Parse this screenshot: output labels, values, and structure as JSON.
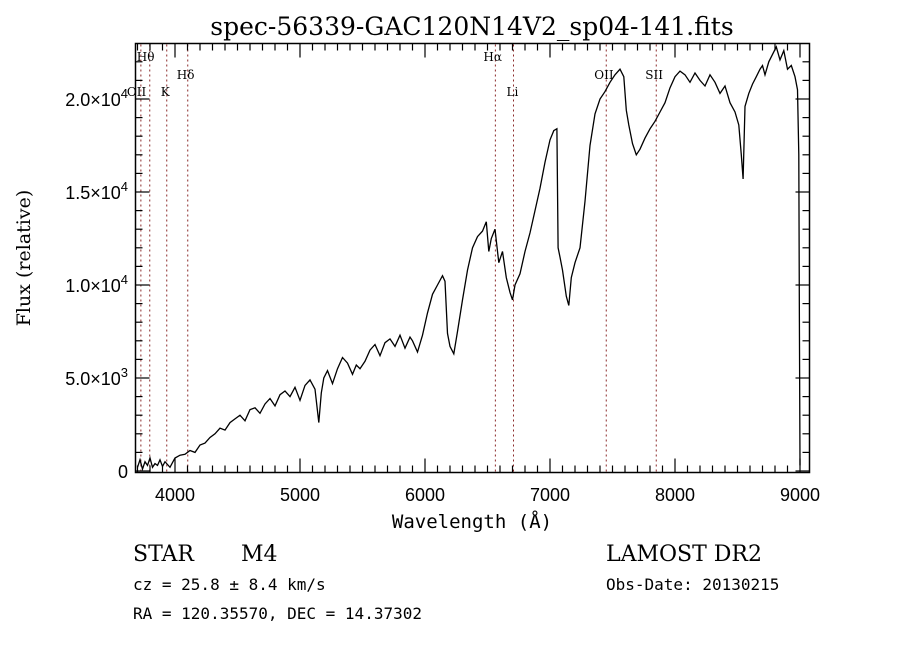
{
  "chart_data": {
    "type": "line",
    "title": "spec-56339-GAC120N14V2_sp04-141.fits",
    "xlabel": "Wavelength (Å)",
    "ylabel": "Flux (relative)",
    "xlim": [
      3700,
      9100
    ],
    "ylim": [
      -200,
      22900
    ],
    "grid": false,
    "x_ticks": [
      {
        "value": 4000,
        "label": "4000"
      },
      {
        "value": 5000,
        "label": "5000"
      },
      {
        "value": 6000,
        "label": "6000"
      },
      {
        "value": 7000,
        "label": "7000"
      },
      {
        "value": 8000,
        "label": "8000"
      },
      {
        "value": 9000,
        "label": "9000"
      }
    ],
    "y_ticks": [
      {
        "value": 0,
        "label": "0",
        "mant": "0",
        "exp": ""
      },
      {
        "value": 5000,
        "label": "5.0×10³",
        "mant": "5.0×10",
        "exp": "3"
      },
      {
        "value": 10000,
        "label": "1.0×10⁴",
        "mant": "1.0×10",
        "exp": "4"
      },
      {
        "value": 15000,
        "label": "1.5×10⁴",
        "mant": "1.5×10",
        "exp": "4"
      },
      {
        "value": 20000,
        "label": "2.0×10⁴",
        "mant": "2.0×10",
        "exp": "4"
      }
    ],
    "lines": [
      {
        "name": "Hθ",
        "wavelength": 3798,
        "label_row": 0
      },
      {
        "name": "OII",
        "wavelength": 3727,
        "label_row": 2
      },
      {
        "name": "K",
        "wavelength": 3934,
        "label_row": 2
      },
      {
        "name": "Hδ",
        "wavelength": 4102,
        "label_row": 1
      },
      {
        "name": "Hα",
        "wavelength": 6563,
        "label_row": 0
      },
      {
        "name": "Li",
        "wavelength": 6708,
        "label_row": 2
      },
      {
        "name": "OII",
        "wavelength": 7450,
        "label_row": 1
      },
      {
        "name": "SII",
        "wavelength": 7850,
        "label_row": 1
      }
    ],
    "series": [
      {
        "name": "spectrum",
        "x": [
          3700,
          3720,
          3740,
          3760,
          3780,
          3800,
          3820,
          3840,
          3860,
          3880,
          3900,
          3920,
          3940,
          3960,
          3980,
          4000,
          4040,
          4080,
          4120,
          4160,
          4200,
          4240,
          4280,
          4320,
          4360,
          4400,
          4440,
          4480,
          4520,
          4560,
          4600,
          4640,
          4680,
          4720,
          4760,
          4800,
          4840,
          4880,
          4920,
          4960,
          5000,
          5040,
          5080,
          5120,
          5150,
          5170,
          5190,
          5220,
          5260,
          5300,
          5340,
          5380,
          5420,
          5450,
          5480,
          5520,
          5560,
          5600,
          5640,
          5680,
          5720,
          5760,
          5800,
          5840,
          5880,
          5900,
          5940,
          5980,
          6020,
          6060,
          6100,
          6140,
          6160,
          6180,
          6200,
          6230,
          6260,
          6300,
          6340,
          6380,
          6420,
          6460,
          6490,
          6510,
          6530,
          6560,
          6590,
          6620,
          6650,
          6680,
          6700,
          6720,
          6760,
          6800,
          6840,
          6880,
          6920,
          6960,
          7000,
          7030,
          7055,
          7065,
          7080,
          7100,
          7130,
          7150,
          7170,
          7200,
          7240,
          7280,
          7320,
          7360,
          7400,
          7440,
          7480,
          7520,
          7560,
          7590,
          7610,
          7630,
          7660,
          7690,
          7720,
          7760,
          7800,
          7840,
          7880,
          7920,
          7960,
          8000,
          8040,
          8080,
          8120,
          8160,
          8200,
          8240,
          8280,
          8320,
          8360,
          8400,
          8440,
          8480,
          8510,
          8530,
          8545,
          8560,
          8590,
          8620,
          8650,
          8680,
          8700,
          8720,
          8750,
          8780,
          8810,
          8840,
          8870,
          8900,
          8930,
          8960,
          8980,
          8990,
          8995,
          9000
        ],
        "y": [
          200,
          600,
          100,
          500,
          300,
          700,
          200,
          400,
          300,
          600,
          250,
          500,
          350,
          200,
          450,
          700,
          850,
          900,
          1100,
          1000,
          1400,
          1500,
          1800,
          2000,
          2300,
          2200,
          2600,
          2800,
          3000,
          2700,
          3300,
          3400,
          3100,
          3600,
          3900,
          3500,
          4100,
          4300,
          4000,
          4500,
          3800,
          4600,
          4900,
          4400,
          2600,
          4200,
          5000,
          5400,
          4700,
          5500,
          6100,
          5800,
          5200,
          5700,
          5500,
          5900,
          6500,
          6800,
          6200,
          6900,
          7100,
          6700,
          7300,
          6600,
          7200,
          7000,
          6400,
          7300,
          8500,
          9500,
          10000,
          10500,
          10200,
          7400,
          6700,
          6300,
          7500,
          9200,
          10800,
          12000,
          12600,
          12900,
          13400,
          11800,
          12500,
          13000,
          11200,
          11800,
          10400,
          9600,
          9200,
          10000,
          10600,
          11800,
          12800,
          14000,
          15200,
          16600,
          17800,
          18300,
          18400,
          12000,
          11500,
          10800,
          9400,
          8900,
          10400,
          11200,
          12000,
          14500,
          17500,
          19200,
          20000,
          20400,
          20900,
          21300,
          21600,
          21200,
          19400,
          18600,
          17600,
          17000,
          17300,
          17900,
          18400,
          18800,
          19300,
          19800,
          20600,
          21200,
          21500,
          21300,
          20900,
          21400,
          21000,
          20700,
          21300,
          20900,
          20300,
          20700,
          19800,
          19300,
          18600,
          17000,
          15700,
          19600,
          20300,
          20800,
          21200,
          21600,
          21800,
          21300,
          22000,
          22400,
          22800,
          22100,
          22600,
          21600,
          21800,
          21200,
          20500,
          17000,
          8000,
          300
        ]
      }
    ]
  },
  "info": {
    "object_type": "STAR",
    "subclass": "M4",
    "redshift": "cz = 25.8 ± 8.4 km/s",
    "coords": "RA = 120.35570, DEC =  14.37302",
    "survey": "LAMOST DR2",
    "obs_date": "Obs-Date: 20130215"
  },
  "colors": {
    "spectrum": "#000000",
    "line_marker": "#8b2a2a",
    "frame": "#000000"
  }
}
